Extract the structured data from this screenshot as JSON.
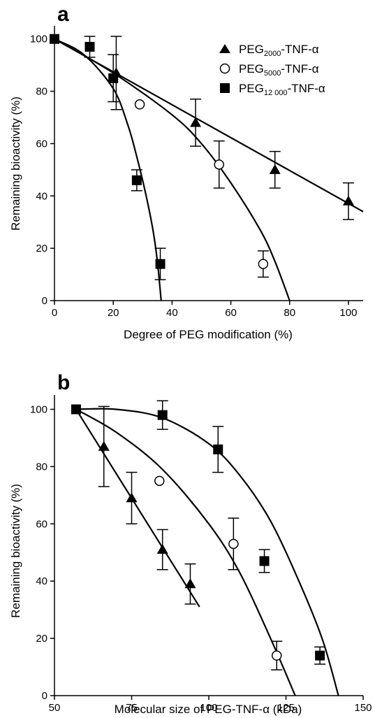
{
  "chart_data": [
    {
      "panel": "a",
      "type": "scatter",
      "xlabel": "Degree of PEG modification (%)",
      "ylabel": "Remaining bioactivity (%)",
      "xlim": [
        0,
        105
      ],
      "ylim": [
        0,
        105
      ],
      "xticks": [
        "0",
        "20",
        "40",
        "60",
        "80",
        "100"
      ],
      "yticks": [
        "0",
        "20",
        "40",
        "60",
        "80",
        "100"
      ],
      "legend": {
        "placement": "top-right",
        "entries": [
          {
            "base": "PEG",
            "sub": "2000",
            "rest": "-TNF-α",
            "marker": "triangle"
          },
          {
            "base": "PEG",
            "sub": "5000",
            "rest": "-TNF-α",
            "marker": "open-circle"
          },
          {
            "base": "PEG",
            "sub": "12 000",
            "rest": "-TNF-α",
            "marker": "square"
          }
        ]
      },
      "series": [
        {
          "marker": "triangle",
          "points": [
            {
              "x": 21,
              "y": 87,
              "err": 14
            },
            {
              "x": 48,
              "y": 68,
              "err": 9
            },
            {
              "x": 75,
              "y": 50,
              "err": 7
            },
            {
              "x": 100,
              "y": 38,
              "err": 7
            }
          ],
          "fit": {
            "kind": "line",
            "x": [
              0,
              105
            ],
            "y": [
              100,
              34
            ]
          }
        },
        {
          "marker": "open-circle",
          "points": [
            {
              "x": 29,
              "y": 75,
              "err": 0
            },
            {
              "x": 56,
              "y": 52,
              "err": 9
            },
            {
              "x": 71,
              "y": 14,
              "err": 5
            }
          ],
          "fit": {
            "kind": "curve",
            "x": [
              0,
              20,
              40,
              50,
              60,
              70,
              75,
              80
            ],
            "y": [
              100,
              87,
              71,
              60,
              45,
              27,
              15,
              0
            ]
          }
        },
        {
          "marker": "square",
          "points": [
            {
              "x": 0,
              "y": 100,
              "err": 0
            },
            {
              "x": 12,
              "y": 97,
              "err": 4
            },
            {
              "x": 20,
              "y": 85,
              "err": 9
            },
            {
              "x": 28,
              "y": 46,
              "err": 4
            },
            {
              "x": 36,
              "y": 14,
              "err": 6
            }
          ],
          "fit": {
            "kind": "curve",
            "x": [
              0,
              10,
              20,
              25,
              28,
              31,
              33.5,
              35,
              36.3
            ],
            "y": [
              100,
              94,
              81,
              67,
              55,
              41,
              27,
              15,
              0
            ]
          }
        }
      ]
    },
    {
      "panel": "b",
      "type": "scatter",
      "xlabel": "Molecular size of PEG-TNF-α (kDa)",
      "ylabel": "Remaining bioactivity (%)",
      "xlim": [
        50,
        150
      ],
      "ylim": [
        0,
        105
      ],
      "xticks": [
        "50",
        "75",
        "100",
        "125",
        "150"
      ],
      "yticks": [
        "0",
        "20",
        "40",
        "60",
        "80",
        "100"
      ],
      "series": [
        {
          "marker": "triangle",
          "points": [
            {
              "x": 66,
              "y": 87,
              "err": 14
            },
            {
              "x": 75,
              "y": 69,
              "err": 9
            },
            {
              "x": 85,
              "y": 51,
              "err": 7
            },
            {
              "x": 94,
              "y": 39,
              "err": 7
            }
          ],
          "fit": {
            "kind": "line",
            "x": [
              57,
              97
            ],
            "y": [
              100,
              31
            ]
          }
        },
        {
          "marker": "open-circle",
          "points": [
            {
              "x": 84,
              "y": 75,
              "err": 0
            },
            {
              "x": 108,
              "y": 53,
              "err": 9
            },
            {
              "x": 122,
              "y": 14,
              "err": 5
            }
          ],
          "fit": {
            "kind": "curve",
            "x": [
              57,
              70,
              85,
              100,
              110,
              120,
              128
            ],
            "y": [
              100,
              92,
              79,
              60,
              43,
              20,
              0
            ]
          }
        },
        {
          "marker": "square",
          "points": [
            {
              "x": 57,
              "y": 100,
              "err": 0
            },
            {
              "x": 85,
              "y": 98,
              "err": 5
            },
            {
              "x": 103,
              "y": 86,
              "err": 8
            },
            {
              "x": 118,
              "y": 47,
              "err": 4
            },
            {
              "x": 136,
              "y": 14,
              "err": 3
            }
          ],
          "fit": {
            "kind": "curve",
            "x": [
              57,
              70,
              85,
              100,
              110,
              120,
              130,
              137,
              142
            ],
            "y": [
              100,
              100,
              97,
              88,
              77,
              61,
              38,
              19,
              0
            ]
          }
        }
      ]
    }
  ]
}
